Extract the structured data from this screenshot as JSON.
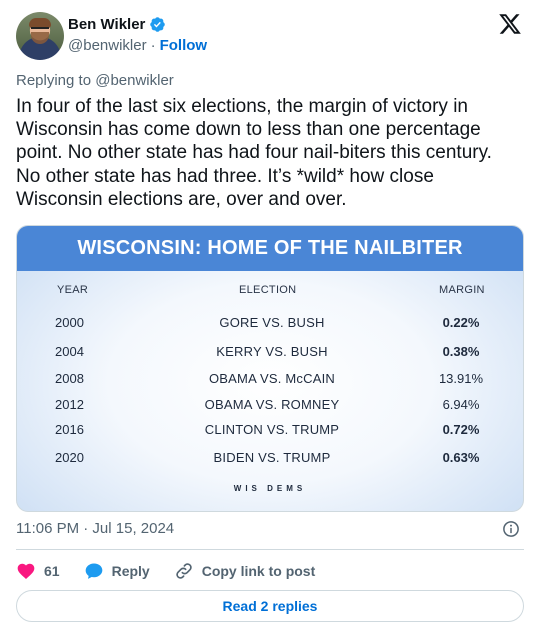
{
  "author": {
    "name": "Ben Wikler",
    "handle": "@benwikler",
    "separator": "·",
    "follow_label": "Follow"
  },
  "replying_to": "Replying to @benwikler",
  "tweet_text": "In four of the last six elections, the margin of victory in Wisconsin has come down to less than one percentage point. No other state has had four nail-biters this century. No other state has had three. It’s *wild* how close Wisconsin elections are, over and over.",
  "media": {
    "title": "WISCONSIN: HOME OF THE NAILBITER",
    "columns": {
      "year": "YEAR",
      "election": "ELECTION",
      "margin": "MARGIN"
    },
    "rows": [
      {
        "year": "2000",
        "election": "GORE VS. BUSH",
        "margin": "0.22%",
        "bold": true
      },
      {
        "year": "2004",
        "election": "KERRY VS. BUSH",
        "margin": "0.38%",
        "bold": true
      },
      {
        "year": "2008",
        "election": "OBAMA VS. McCAIN",
        "margin": "13.91%",
        "bold": false
      },
      {
        "year": "2012",
        "election": "OBAMA VS. ROMNEY",
        "margin": "6.94%",
        "bold": false
      },
      {
        "year": "2016",
        "election": "CLINTON VS. TRUMP",
        "margin": "0.72%",
        "bold": true
      },
      {
        "year": "2020",
        "election": "BIDEN VS. TRUMP",
        "margin": "0.63%",
        "bold": true
      }
    ],
    "brand": "WIS DEMS"
  },
  "timestamp": "11:06 PM · Jul 15, 2024",
  "actions": {
    "likes": "61",
    "reply_label": "Reply",
    "copy_label": "Copy link to post"
  },
  "read_replies_label": "Read 2 replies",
  "colors": {
    "accent": "#006fd6",
    "like": "#f91880",
    "reply_icon": "#1d9bf0",
    "header_band": "#4a86d6",
    "verified": "#1d9bf0"
  },
  "icons": {
    "verified": "verified-badge-icon",
    "x": "x-logo-icon",
    "info": "info-icon",
    "like": "heart-icon",
    "reply": "speech-bubble-icon",
    "copy": "link-icon"
  }
}
